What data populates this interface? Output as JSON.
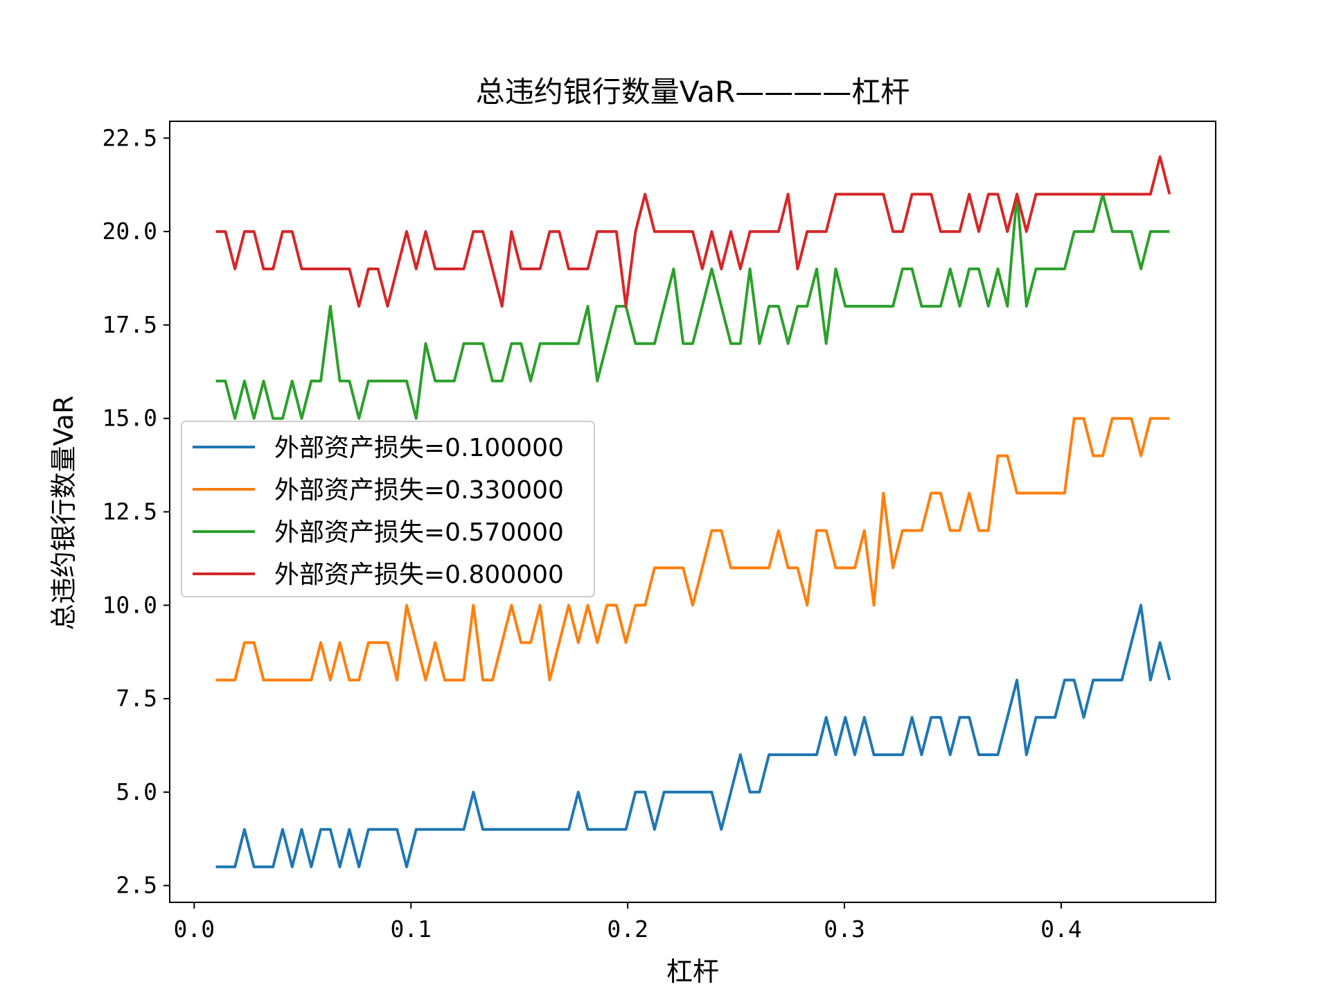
{
  "chart_data": {
    "type": "line",
    "title": "总违约银行数量VaR————杠杆",
    "xlabel": "杠杆",
    "ylabel": "总违约银行数量VaR",
    "xlim": [
      -0.0113,
      0.4713
    ],
    "ylim": [
      2.05,
      22.95
    ],
    "xticks": [
      0.0,
      0.1,
      0.2,
      0.3,
      0.4
    ],
    "xtick_labels": [
      "0.0",
      "0.1",
      "0.2",
      "0.3",
      "0.4"
    ],
    "yticks": [
      2.5,
      5.0,
      7.5,
      10.0,
      12.5,
      15.0,
      17.5,
      20.0,
      22.5
    ],
    "ytick_labels": [
      "2.5",
      "5.0",
      "7.5",
      "10.0",
      "12.5",
      "15.0",
      "17.5",
      "20.0",
      "22.5"
    ],
    "grid": false,
    "legend_position": "center-left",
    "x_start": 0.01,
    "x_end": 0.45,
    "series": [
      {
        "name": "外部资产损失=0.100000",
        "color": "#1f77b4",
        "values": [
          3,
          3,
          3,
          4,
          3,
          3,
          3,
          4,
          3,
          4,
          3,
          4,
          4,
          3,
          4,
          3,
          4,
          4,
          4,
          4,
          3,
          4,
          4,
          4,
          4,
          4,
          4,
          5,
          4,
          4,
          4,
          4,
          4,
          4,
          4,
          4,
          4,
          4,
          5,
          4,
          4,
          4,
          4,
          4,
          5,
          5,
          4,
          5,
          5,
          5,
          5,
          5,
          5,
          4,
          5,
          6,
          5,
          5,
          6,
          6,
          6,
          6,
          6,
          6,
          7,
          6,
          7,
          6,
          7,
          6,
          6,
          6,
          6,
          7,
          6,
          7,
          7,
          6,
          7,
          7,
          6,
          6,
          6,
          7,
          8,
          6,
          7,
          7,
          7,
          8,
          8,
          7,
          8,
          8,
          8,
          8,
          9,
          10,
          8,
          9,
          8
        ]
      },
      {
        "name": "外部资产损失=0.330000",
        "color": "#ff7f0e",
        "values": [
          8,
          8,
          8,
          9,
          9,
          8,
          8,
          8,
          8,
          8,
          8,
          9,
          8,
          9,
          8,
          8,
          9,
          9,
          9,
          8,
          10,
          9,
          8,
          9,
          8,
          8,
          8,
          10,
          8,
          8,
          9,
          10,
          9,
          9,
          10,
          8,
          9,
          10,
          9,
          10,
          9,
          10,
          10,
          9,
          10,
          10,
          11,
          11,
          11,
          11,
          10,
          11,
          12,
          12,
          11,
          11,
          11,
          11,
          11,
          12,
          11,
          11,
          10,
          12,
          12,
          11,
          11,
          11,
          12,
          10,
          13,
          11,
          12,
          12,
          12,
          13,
          13,
          12,
          12,
          13,
          12,
          12,
          14,
          14,
          13,
          13,
          13,
          13,
          13,
          13,
          15,
          15,
          14,
          14,
          15,
          15,
          15,
          14,
          15,
          15,
          15
        ]
      },
      {
        "name": "外部资产损失=0.570000",
        "color": "#2ca02c",
        "values": [
          16,
          16,
          15,
          16,
          15,
          16,
          15,
          15,
          16,
          15,
          16,
          16,
          18,
          16,
          16,
          15,
          16,
          16,
          16,
          16,
          16,
          15,
          17,
          16,
          16,
          16,
          17,
          17,
          17,
          16,
          16,
          17,
          17,
          16,
          17,
          17,
          17,
          17,
          17,
          18,
          16,
          17,
          18,
          18,
          17,
          17,
          17,
          18,
          19,
          17,
          17,
          18,
          19,
          18,
          17,
          17,
          19,
          17,
          18,
          18,
          17,
          18,
          18,
          19,
          17,
          19,
          18,
          18,
          18,
          18,
          18,
          18,
          19,
          19,
          18,
          18,
          18,
          19,
          18,
          19,
          19,
          18,
          19,
          18,
          21,
          18,
          19,
          19,
          19,
          19,
          20,
          20,
          20,
          21,
          20,
          20,
          20,
          19,
          20,
          20,
          20
        ]
      },
      {
        "name": "外部资产损失=0.800000",
        "color": "#d62728",
        "values": [
          20,
          20,
          19,
          20,
          20,
          19,
          19,
          20,
          20,
          19,
          19,
          19,
          19,
          19,
          19,
          18,
          19,
          19,
          18,
          19,
          20,
          19,
          20,
          19,
          19,
          19,
          19,
          20,
          20,
          19,
          18,
          20,
          19,
          19,
          19,
          20,
          20,
          19,
          19,
          19,
          20,
          20,
          20,
          18,
          20,
          21,
          20,
          20,
          20,
          20,
          20,
          19,
          20,
          19,
          20,
          19,
          20,
          20,
          20,
          20,
          21,
          19,
          20,
          20,
          20,
          21,
          21,
          21,
          21,
          21,
          21,
          20,
          20,
          21,
          21,
          21,
          20,
          20,
          20,
          21,
          20,
          21,
          21,
          20,
          21,
          20,
          21,
          21,
          21,
          21,
          21,
          21,
          21,
          21,
          21,
          21,
          21,
          21,
          21,
          22,
          21
        ]
      }
    ]
  }
}
